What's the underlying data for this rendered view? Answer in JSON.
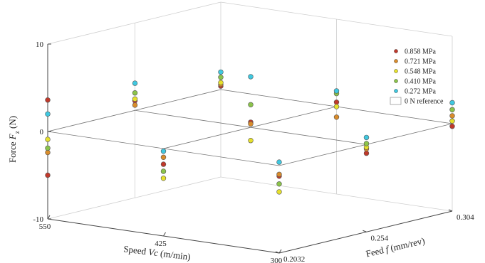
{
  "chart_data": {
    "type": "scatter",
    "xlabel_prefix": "Speed ",
    "xlabel_var": "Vc",
    "xlabel_suffix": " (m/min)",
    "ylabel_prefix": "Feed ",
    "ylabel_var": "f",
    "ylabel_suffix": " (mm/rev)",
    "zlabel_prefix": "Force ",
    "zlabel_var": "F",
    "zlabel_sub": "z",
    "zlabel_suffix": " (N)",
    "x_ticks": [
      {
        "value": 550,
        "label": "550"
      },
      {
        "value": 425,
        "label": "425"
      },
      {
        "value": 300,
        "label": "300"
      }
    ],
    "y_ticks": [
      {
        "value": 0.2032,
        "label": "0.2032"
      },
      {
        "value": 0.254,
        "label": "0.254"
      },
      {
        "value": 0.304,
        "label": "0.304"
      }
    ],
    "z_ticks": [
      {
        "value": 10,
        "label": "10"
      },
      {
        "value": 0,
        "label": "0"
      },
      {
        "value": -10,
        "label": "-10"
      }
    ],
    "xlim": [
      300,
      550
    ],
    "ylim": [
      0.2032,
      0.304
    ],
    "zlim": [
      -10,
      10
    ],
    "grid": true,
    "legend_position": "top-right",
    "reference_label": "0 N reference",
    "reference_value": 0,
    "series": [
      {
        "name": "0.858 MPa",
        "color": "#c0392b",
        "points": [
          [
            550,
            0.2032,
            3.6
          ],
          [
            550,
            0.254,
            1.1
          ],
          [
            550,
            0.304,
            0.4
          ],
          [
            425,
            0.2032,
            -1.8
          ],
          [
            425,
            0.254,
            0.6
          ],
          [
            425,
            0.304,
            0.5
          ],
          [
            300,
            0.2032,
            -1.2
          ],
          [
            300,
            0.254,
            -1.0
          ],
          [
            300,
            0.304,
            -0.3
          ],
          [
            550,
            0.2032,
            -5.0
          ]
        ]
      },
      {
        "name": "0.721 MPa",
        "color": "#d98c2b",
        "points": [
          [
            550,
            0.2032,
            -2.4
          ],
          [
            550,
            0.254,
            0.6
          ],
          [
            550,
            0.304,
            0.6
          ],
          [
            425,
            0.2032,
            -1.0
          ],
          [
            425,
            0.254,
            0.4
          ],
          [
            425,
            0.304,
            -1.2
          ],
          [
            300,
            0.2032,
            -1.0
          ],
          [
            300,
            0.254,
            -0.5
          ],
          [
            300,
            0.304,
            0.9
          ]
        ]
      },
      {
        "name": "0.548 MPa",
        "color": "#e6e02c",
        "points": [
          [
            550,
            0.2032,
            -0.9
          ],
          [
            550,
            0.254,
            1.3
          ],
          [
            550,
            0.304,
            0.8
          ],
          [
            425,
            0.2032,
            -3.4
          ],
          [
            425,
            0.254,
            -1.5
          ],
          [
            425,
            0.304,
            0.0
          ],
          [
            300,
            0.2032,
            -3.0
          ],
          [
            300,
            0.254,
            -0.3
          ],
          [
            300,
            0.304,
            0.3
          ]
        ]
      },
      {
        "name": "0.410 MPa",
        "color": "#8bc34a",
        "points": [
          [
            550,
            0.2032,
            -1.9
          ],
          [
            550,
            0.254,
            2.0
          ],
          [
            550,
            0.304,
            1.4
          ],
          [
            425,
            0.2032,
            -2.6
          ],
          [
            425,
            0.254,
            2.6
          ],
          [
            425,
            0.304,
            1.5
          ],
          [
            300,
            0.2032,
            -2.1
          ],
          [
            300,
            0.254,
            0.1
          ],
          [
            300,
            0.304,
            1.6
          ]
        ]
      },
      {
        "name": "0.272 MPa",
        "color": "#3fc8e0",
        "points": [
          [
            550,
            0.2032,
            2.0
          ],
          [
            550,
            0.254,
            3.1
          ],
          [
            550,
            0.304,
            2.0
          ],
          [
            425,
            0.2032,
            -0.3
          ],
          [
            425,
            0.254,
            5.8
          ],
          [
            425,
            0.304,
            1.8
          ],
          [
            300,
            0.2032,
            0.4
          ],
          [
            300,
            0.254,
            0.8
          ],
          [
            300,
            0.304,
            2.4
          ]
        ]
      }
    ]
  }
}
